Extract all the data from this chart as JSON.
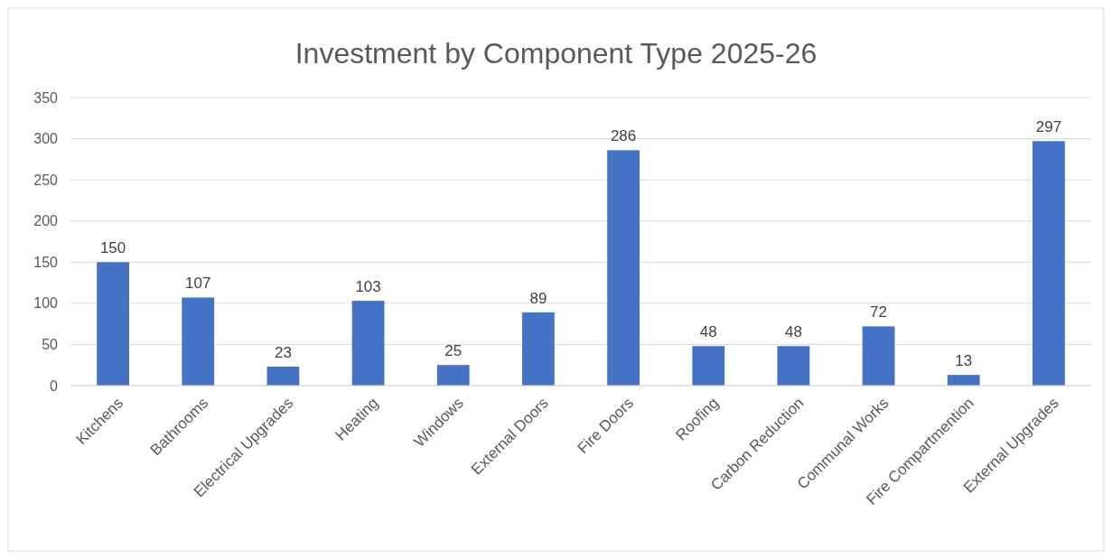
{
  "chart_data": {
    "type": "bar",
    "title": "Investment by Component Type 2025-26",
    "categories": [
      "Kitchens",
      "Bathrooms",
      "Electrical Upgrades",
      "Heating",
      "Windows",
      "External Doors",
      "Fire Doors",
      "Roofing",
      "Carbon Reduction",
      "Communal Works",
      "Fire Compartmention",
      "External Upgrades"
    ],
    "values": [
      150,
      107,
      23,
      103,
      25,
      89,
      286,
      48,
      48,
      72,
      13,
      297
    ],
    "color": "#4472c4",
    "ylim": [
      0,
      350
    ],
    "yticks": [
      0,
      50,
      100,
      150,
      200,
      250,
      300,
      350
    ],
    "grid": "y",
    "data_labels": true
  }
}
